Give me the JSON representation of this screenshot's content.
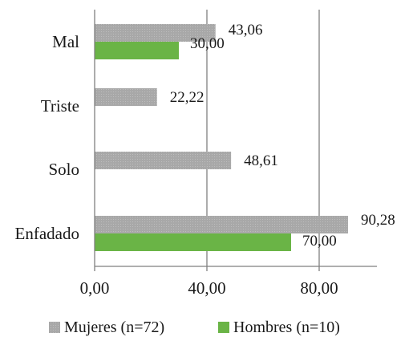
{
  "chart_data": {
    "type": "bar",
    "orientation": "horizontal",
    "categories": [
      "Mal",
      "Triste",
      "Solo",
      "Enfadado"
    ],
    "series": [
      {
        "name": "Mujeres (n=72)",
        "color": "#a6a6a6",
        "values": [
          43.06,
          22.22,
          48.61,
          90.28
        ],
        "labels": [
          "43,06",
          "22,22",
          "48,61",
          "90,28"
        ]
      },
      {
        "name": "Hombres (n=10)",
        "color": "#6ab446",
        "values": [
          30.0,
          null,
          null,
          70.0
        ],
        "labels": [
          "30,00",
          null,
          null,
          "70,00"
        ]
      }
    ],
    "x_ticks": [
      0,
      40,
      80
    ],
    "x_tick_labels": [
      "0,00",
      "40,00",
      "80,00"
    ],
    "xlim": [
      0,
      100
    ],
    "grid": "vertical",
    "legend_position": "bottom"
  }
}
